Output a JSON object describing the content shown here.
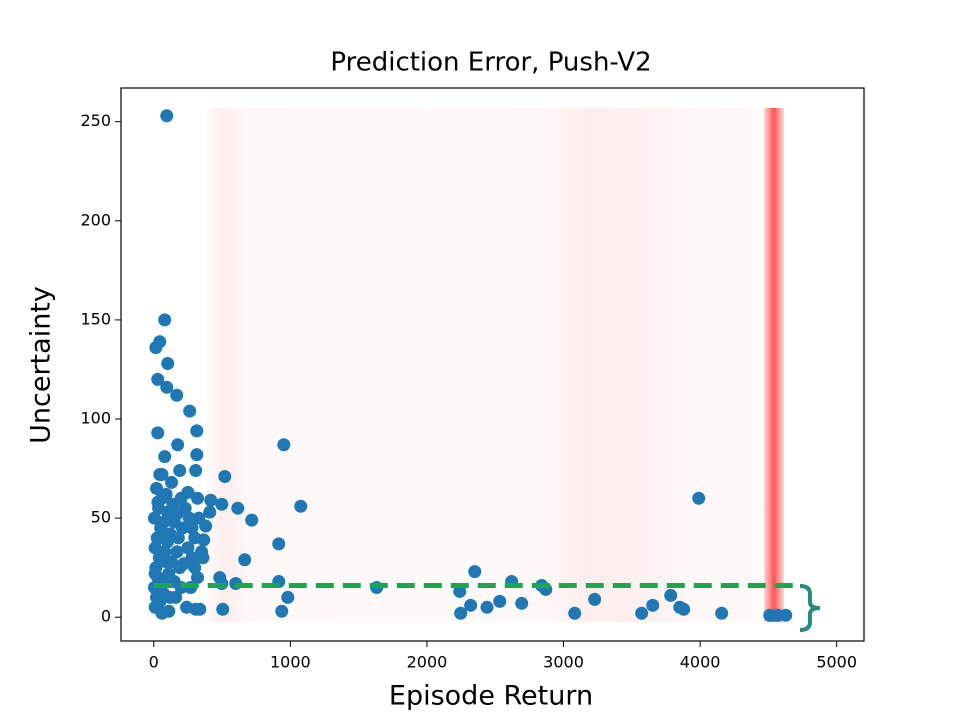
{
  "chart_data": {
    "type": "scatter",
    "title": "Prediction Error, Push-V2",
    "x_label": "Episode Return",
    "y_label": "Uncertainty",
    "color": "#1f77b4",
    "x": [
      95,
      80,
      44,
      15,
      102,
      29,
      95,
      168,
      263,
      315,
      29,
      175,
      952,
      315,
      80,
      44,
      307,
      190,
      520,
      1076,
      615,
      717,
      3990,
      915,
      666,
      380,
      366,
      410,
      498,
      417,
      483,
      600,
      498,
      915,
      981,
      937,
      505,
      307,
      337,
      1632,
      2350,
      2240,
      2247,
      2320,
      2440,
      2533,
      2620,
      2694,
      2840,
      2870,
      3082,
      3228,
      3572,
      3653,
      3785,
      3851,
      3880,
      4158,
      4510,
      4568,
      4627,
      10,
      20,
      5,
      30,
      15,
      40,
      10,
      25,
      50,
      5,
      35,
      60,
      20,
      45,
      70,
      90,
      110,
      130,
      80,
      100,
      120,
      150,
      170,
      140,
      200,
      230,
      260,
      210,
      180,
      250,
      280,
      300,
      320,
      200,
      160,
      240,
      110,
      60,
      300,
      330,
      350,
      270,
      190,
      90,
      130,
      60,
      250,
      220,
      170,
      30,
      75,
      100,
      150,
      40,
      10,
      360,
      320,
      280,
      120,
      90
    ],
    "values": [
      253,
      150,
      139,
      136,
      128,
      120,
      116,
      112,
      104,
      94,
      93,
      87,
      87,
      82,
      81,
      72,
      74,
      74,
      71,
      56,
      55,
      49,
      60,
      37,
      29,
      46,
      39,
      53,
      57,
      59,
      20,
      17,
      17,
      18,
      10,
      3,
      4,
      4,
      4,
      15,
      23,
      13,
      2,
      6,
      5,
      8,
      18,
      7,
      16,
      14,
      2,
      9,
      2,
      6,
      11,
      5,
      4,
      2,
      1,
      1,
      1,
      5,
      10,
      15,
      20,
      25,
      30,
      35,
      40,
      45,
      50,
      55,
      60,
      65,
      8,
      12,
      18,
      22,
      28,
      33,
      38,
      42,
      48,
      52,
      57,
      60,
      55,
      50,
      45,
      40,
      35,
      30,
      25,
      20,
      15,
      10,
      5,
      3,
      2,
      40,
      50,
      33,
      15,
      25,
      62,
      68,
      72,
      63,
      27,
      33,
      58,
      48,
      53,
      18,
      40,
      22,
      30,
      60,
      45,
      10,
      28
    ],
    "xlim": [
      -240,
      5200
    ],
    "ylim": [
      -12,
      267
    ],
    "xticks": [
      0,
      1000,
      2000,
      3000,
      4000,
      5000
    ],
    "yticks": [
      0,
      50,
      100,
      150,
      200,
      250
    ],
    "reference_line": {
      "y": 16,
      "x": [
        0,
        4680
      ],
      "color": "#1aa84f"
    }
  }
}
